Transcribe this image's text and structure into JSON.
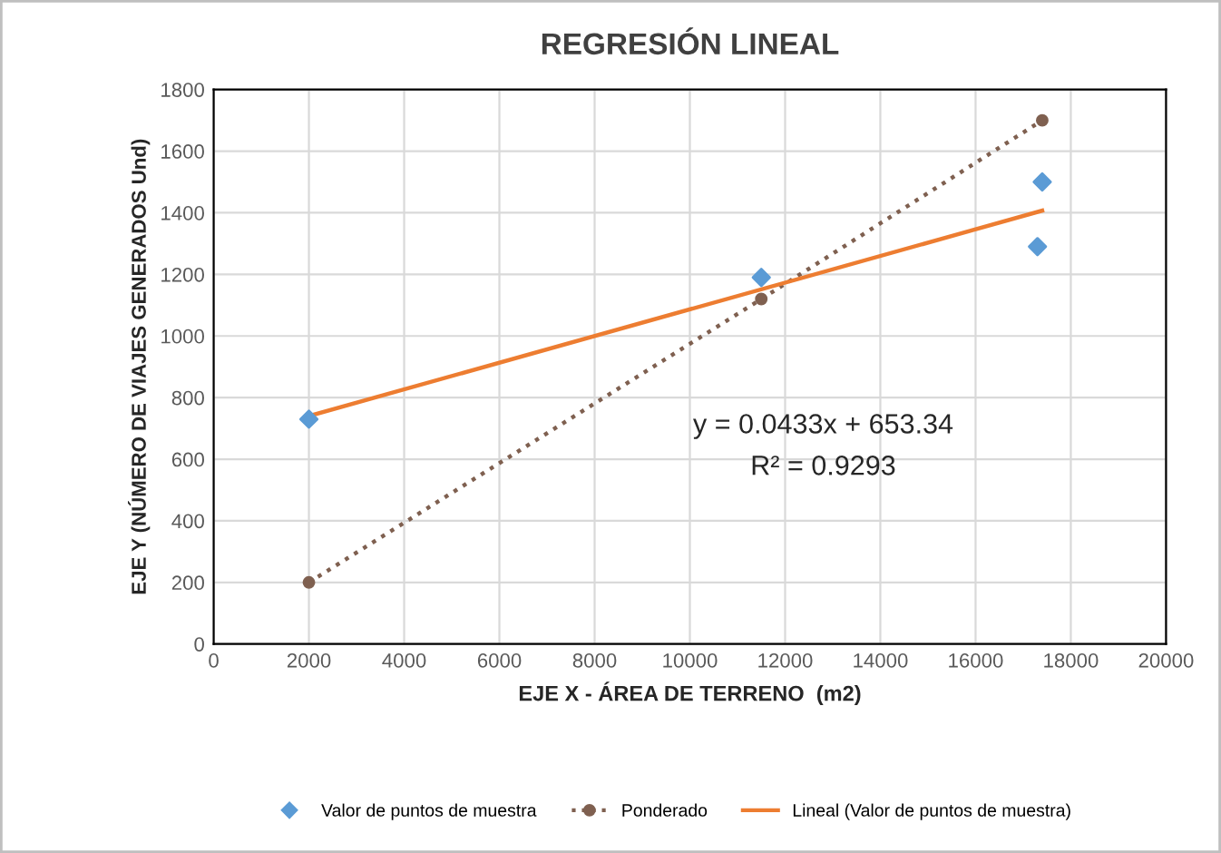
{
  "chart_data": {
    "type": "scatter",
    "title": "REGRESIÓN LINEAL",
    "xlabel": "EJE X - ÁREA DE TERRENO  (m2)",
    "ylabel": "EJE Y (NÚMERO DE VIAJES GENERADOS Und)",
    "series": [
      {
        "name": "Valor de puntos de muestra",
        "color": "#5b9bd5",
        "marker": "diamond",
        "x": [
          2000,
          11500,
          17300,
          17400
        ],
        "values": [
          730,
          1190,
          1290,
          1500
        ]
      },
      {
        "name": "Ponderado",
        "type": "line",
        "color": "#7f6050",
        "marker": "circle",
        "line_style": "dotted",
        "x": [
          2000,
          11500,
          17400
        ],
        "values": [
          200,
          1120,
          1700
        ]
      },
      {
        "name": "Lineal (Valor de puntos de muestra)",
        "type": "line",
        "color": "#ed7d31",
        "marker": "none",
        "line_style": "solid",
        "x": [
          2000,
          17400
        ],
        "values": [
          740,
          1407
        ]
      }
    ],
    "annotations": [
      "y = 0.0433x + 653.34",
      "R² = 0.9293"
    ],
    "xlim": [
      0,
      20000
    ],
    "ylim": [
      0,
      1800
    ],
    "xticks": [
      0,
      2000,
      4000,
      6000,
      8000,
      10000,
      12000,
      14000,
      16000,
      18000,
      20000
    ],
    "yticks": [
      0,
      200,
      400,
      600,
      800,
      1000,
      1200,
      1400,
      1600,
      1800
    ],
    "grid": true,
    "legend": "bottom"
  }
}
